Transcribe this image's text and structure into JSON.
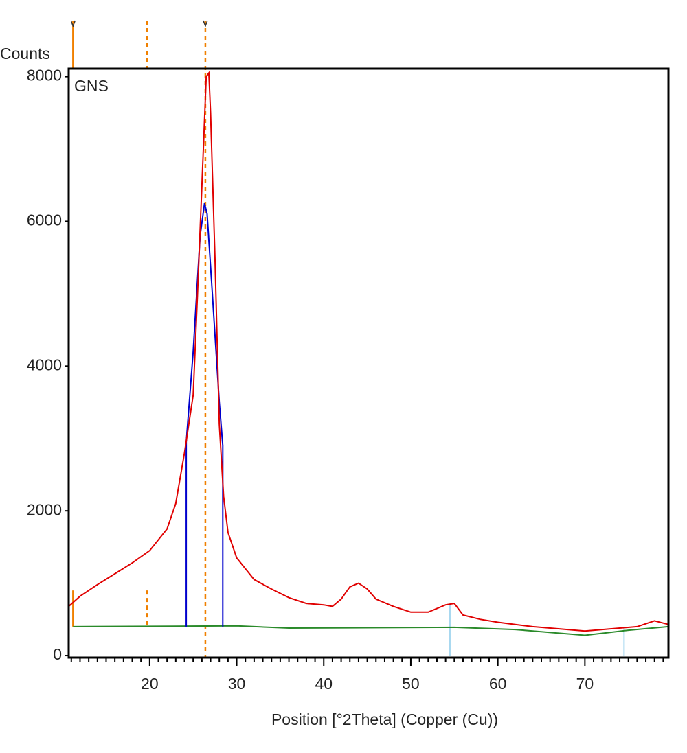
{
  "chart_data": {
    "type": "line",
    "y_label": "Counts",
    "x_label": "Position [°2Theta] (Copper (Cu))",
    "annotation": "GNS",
    "xlim": [
      10.7,
      79.6
    ],
    "ylim": [
      -28,
      8110
    ],
    "xticks": [
      20,
      30,
      40,
      50,
      60,
      70
    ],
    "xminor_ticks": [
      11,
      12,
      13,
      14,
      15,
      16,
      17,
      18,
      19,
      21,
      22,
      23,
      24,
      25,
      26,
      27,
      28,
      29,
      31,
      32,
      33,
      34,
      35,
      36,
      37,
      38,
      39,
      41,
      42,
      43,
      44,
      45,
      46,
      47,
      48,
      49,
      51,
      52,
      53,
      54,
      55,
      56,
      57,
      58,
      59,
      61,
      62,
      63,
      64,
      65,
      66,
      67,
      68,
      69,
      71,
      72,
      73,
      74,
      75,
      76,
      77,
      78,
      79
    ],
    "yticks": [
      0,
      2000,
      4000,
      6000,
      8000
    ],
    "series": [
      {
        "color": "#2a8a2a",
        "x": [
          11.2,
          30,
          36,
          55,
          62,
          70,
          75,
          79.6
        ],
        "values": [
          400,
          410,
          380,
          390,
          360,
          280,
          350,
          400
        ]
      },
      {
        "color": "#0000cc",
        "x": [
          24.2,
          24.2,
          25,
          25.8,
          26.3,
          26.6,
          27.2,
          28,
          28.4,
          28.4
        ],
        "values": [
          400,
          2950,
          4200,
          5800,
          6250,
          6100,
          5000,
          3500,
          2900,
          400
        ]
      },
      {
        "color": "#e00000",
        "x": [
          10.7,
          12,
          14,
          16,
          18,
          20,
          22,
          23,
          24,
          25,
          25.5,
          26,
          26.5,
          26.8,
          27,
          27.5,
          28,
          28.5,
          29,
          30,
          32,
          34,
          36,
          38,
          40,
          41,
          42,
          43,
          44,
          45,
          46,
          48,
          50,
          52,
          54,
          55,
          56,
          58,
          60,
          62,
          64,
          66,
          68,
          70,
          72,
          74,
          76,
          78,
          79.6
        ],
        "values": [
          680,
          820,
          980,
          1130,
          1280,
          1450,
          1750,
          2100,
          2800,
          3600,
          5000,
          6500,
          8000,
          8050,
          7500,
          5500,
          3200,
          2200,
          1700,
          1350,
          1050,
          920,
          800,
          720,
          700,
          680,
          780,
          950,
          1000,
          920,
          780,
          680,
          600,
          600,
          700,
          720,
          560,
          500,
          460,
          430,
          400,
          380,
          360,
          340,
          360,
          380,
          400,
          480,
          430
        ]
      }
    ],
    "reference_lines": [
      {
        "x": 11.2,
        "style": "solid",
        "full": false,
        "marked": true
      },
      {
        "x": 19.7,
        "style": "dashed",
        "full": false,
        "marked": false
      },
      {
        "x": 26.4,
        "style": "dashed",
        "full": true,
        "marked": true
      }
    ],
    "reference_color": "#f08000",
    "peak_sticks": {
      "color": "#a8d8f0",
      "x": [
        54.5,
        74.5
      ],
      "values": [
        710,
        380
      ]
    }
  }
}
